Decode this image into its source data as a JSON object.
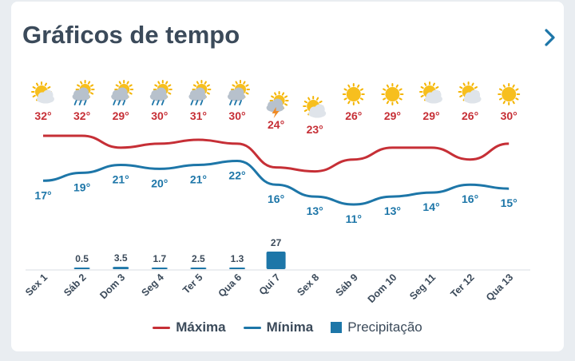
{
  "header": {
    "title": "Gráficos de tempo",
    "next_icon": "chevron-right-icon"
  },
  "colors": {
    "max": "#c62f36",
    "min": "#1d76a8",
    "precip": "#1d76a8",
    "text": "#3b4a5a",
    "grid": "#d9dee3"
  },
  "legend": {
    "max_label": "Máxima",
    "min_label": "Mínima",
    "precip_label": "Precipitação"
  },
  "chart_data": {
    "type": "line",
    "categories": [
      "Sex 1",
      "Sáb 2",
      "Dom 3",
      "Seg 4",
      "Ter 5",
      "Qua 6",
      "Qui 7",
      "Sex 8",
      "Sáb 9",
      "Dom 10",
      "Seg 11",
      "Ter 12",
      "Qua 13"
    ],
    "icons": [
      "sun-cloud-icon",
      "rain-sun-icon",
      "rain-sun-icon",
      "rain-sun-icon",
      "rain-sun-icon",
      "rain-sun-icon",
      "storm-sun-icon",
      "sun-cloud-icon",
      "sun-icon",
      "sun-icon",
      "sun-cloud-icon",
      "sun-cloud-icon",
      "sun-icon"
    ],
    "series": [
      {
        "name": "Máxima",
        "values": [
          32,
          32,
          29,
          30,
          31,
          30,
          24,
          23,
          26,
          29,
          29,
          26,
          30
        ],
        "labels": [
          "32°",
          "32°",
          "29°",
          "30°",
          "31°",
          "30°",
          "24°",
          "23°",
          "26°",
          "29°",
          "29°",
          "26°",
          "30°"
        ]
      },
      {
        "name": "Mínima",
        "values": [
          17,
          19,
          21,
          20,
          21,
          22,
          16,
          13,
          11,
          13,
          14,
          16,
          15
        ],
        "labels": [
          "17°",
          "19°",
          "21°",
          "20°",
          "21°",
          "22°",
          "16°",
          "13°",
          "11°",
          "13°",
          "14°",
          "16°",
          "15°"
        ]
      },
      {
        "name": "Precipitação",
        "values": [
          0,
          0.5,
          3.5,
          1.7,
          2.5,
          1.3,
          27,
          0,
          0,
          0,
          0,
          0,
          0
        ],
        "labels": [
          "",
          "0.5",
          "3.5",
          "1.7",
          "2.5",
          "1.3",
          "27",
          "",
          "",
          "",
          "",
          "",
          ""
        ]
      }
    ],
    "legend_position": "bottom",
    "grid": false
  }
}
